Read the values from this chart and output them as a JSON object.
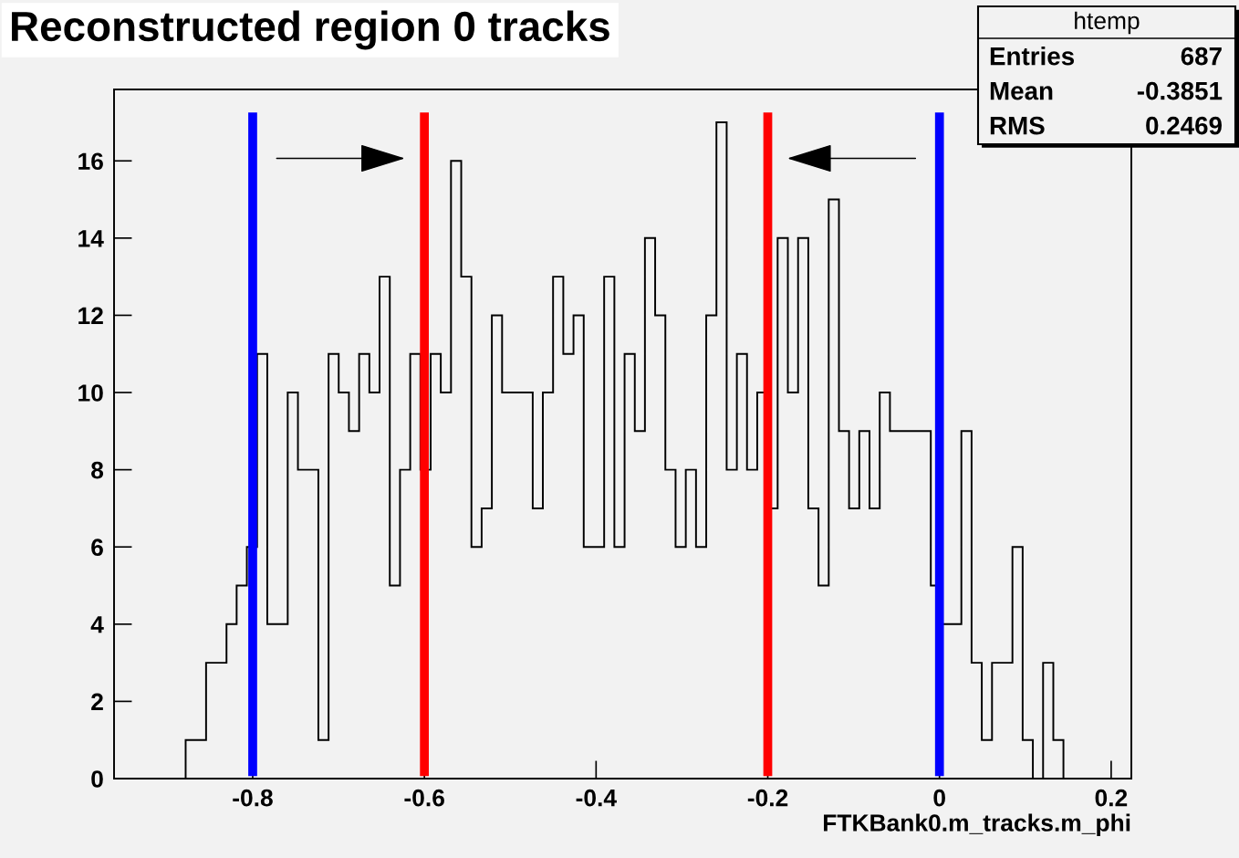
{
  "chart_data": {
    "type": "histogram",
    "title": "Reconstructed region 0 tracks",
    "xlabel": "FTKBank0.m_tracks.m_phi",
    "bins": [
      -0.8781,
      -0.8662,
      -0.8543,
      -0.8424,
      -0.8305,
      -0.8187,
      -0.8068,
      -0.7949,
      -0.783,
      -0.7711,
      -0.7592,
      -0.7473,
      -0.7354,
      -0.7235,
      -0.7116,
      -0.6998,
      -0.6879,
      -0.676,
      -0.6641,
      -0.6522,
      -0.6403,
      -0.6284,
      -0.6165,
      -0.6046,
      -0.5927,
      -0.5809,
      -0.569,
      -0.5571,
      -0.5452,
      -0.5333,
      -0.5214,
      -0.5095,
      -0.4976,
      -0.4857,
      -0.4738,
      -0.462,
      -0.4501,
      -0.4382,
      -0.4263,
      -0.4144,
      -0.4025,
      -0.3906,
      -0.3787,
      -0.3668,
      -0.3549,
      -0.3431,
      -0.3312,
      -0.3193,
      -0.3074,
      -0.2955,
      -0.2836,
      -0.2717,
      -0.2598,
      -0.2479,
      -0.236,
      -0.2242,
      -0.2123,
      -0.2004,
      -0.1885,
      -0.1766,
      -0.1647,
      -0.1528,
      -0.1409,
      -0.129,
      -0.1171,
      -0.1053,
      -0.0934,
      -0.0815,
      -0.0696,
      -0.0577,
      -0.0458,
      -0.0339,
      -0.022,
      -0.0101,
      0.0018,
      0.0137,
      0.0255,
      0.0374,
      0.0493,
      0.0612,
      0.0731,
      0.085,
      0.0969,
      0.1088,
      0.1207,
      0.1326,
      0.1444
    ],
    "values": [
      1,
      1,
      3,
      3,
      4,
      5,
      6,
      11,
      4,
      4,
      10,
      8,
      8,
      1,
      11,
      10,
      9,
      11,
      10,
      13,
      5,
      8,
      11,
      8,
      11,
      10,
      16,
      13,
      6,
      7,
      12,
      10,
      10,
      10,
      7,
      10,
      13,
      11,
      12,
      6,
      6,
      13,
      6,
      11,
      9,
      14,
      12,
      8,
      6,
      8,
      6,
      12,
      17,
      8,
      11,
      8,
      10,
      7,
      14,
      10,
      14,
      7,
      5,
      15,
      9,
      7,
      9,
      7,
      10,
      9,
      9,
      9,
      9,
      5,
      4,
      4,
      9,
      3,
      1,
      3,
      3,
      6,
      1,
      0,
      3,
      1
    ],
    "color": "#000000",
    "xlim": [
      -0.9615,
      0.2235
    ],
    "ylim": [
      0,
      17.85
    ],
    "xticks": [
      -0.8,
      -0.6,
      -0.4,
      -0.2,
      0,
      0.2
    ],
    "yticks": [
      0,
      2,
      4,
      6,
      8,
      10,
      12,
      14,
      16
    ],
    "grid": false,
    "legend": false,
    "ref_lines": [
      {
        "axis": "x",
        "value": -0.8,
        "color": "#0000ff"
      },
      {
        "axis": "x",
        "value": -0.6,
        "color": "#ff0000"
      },
      {
        "axis": "x",
        "value": -0.2,
        "color": "#ff0000"
      },
      {
        "axis": "x",
        "value": 0,
        "color": "#0000ff"
      }
    ],
    "annotations": [
      "htemp",
      "Entries",
      "687",
      "Mean",
      "-0.3851",
      "RMS",
      "0.2469"
    ]
  }
}
